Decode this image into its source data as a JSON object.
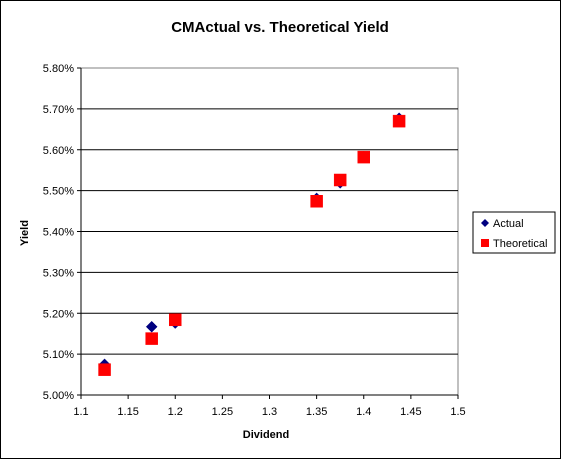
{
  "chart_data": {
    "type": "scatter",
    "title": "CMActual vs. Theoretical Yield",
    "xlabel": "Dividend",
    "ylabel": "Yield",
    "xlim": [
      1.1,
      1.5
    ],
    "ylim": [
      0.05,
      0.058
    ],
    "x_ticks": [
      "1.1",
      "1.15",
      "1.2",
      "1.25",
      "1.3",
      "1.35",
      "1.4",
      "1.45",
      "1.5"
    ],
    "y_ticks": [
      "5.00%",
      "5.10%",
      "5.20%",
      "5.30%",
      "5.40%",
      "5.50%",
      "5.60%",
      "5.70%",
      "5.80%"
    ],
    "grid": "horizontal major gridlines",
    "plot_background": "#ffffff",
    "legend_position": "right",
    "series": [
      {
        "name": "Actual",
        "marker": "diamond",
        "color": "#000080",
        "points": [
          {
            "x": 1.125,
            "y": 0.05075
          },
          {
            "x": 1.175,
            "y": 0.05167
          },
          {
            "x": 1.2,
            "y": 0.05176
          },
          {
            "x": 1.35,
            "y": 0.05481
          },
          {
            "x": 1.375,
            "y": 0.05519
          },
          {
            "x": 1.4,
            "y": 0.05583
          },
          {
            "x": 1.4375,
            "y": 0.05677
          }
        ]
      },
      {
        "name": "Theoretical",
        "marker": "square",
        "color": "#ff0000",
        "points": [
          {
            "x": 1.125,
            "y": 0.05062
          },
          {
            "x": 1.175,
            "y": 0.05138
          },
          {
            "x": 1.2,
            "y": 0.05184
          },
          {
            "x": 1.35,
            "y": 0.05474
          },
          {
            "x": 1.375,
            "y": 0.05526
          },
          {
            "x": 1.4,
            "y": 0.05582
          },
          {
            "x": 1.4375,
            "y": 0.0567
          }
        ]
      }
    ]
  }
}
